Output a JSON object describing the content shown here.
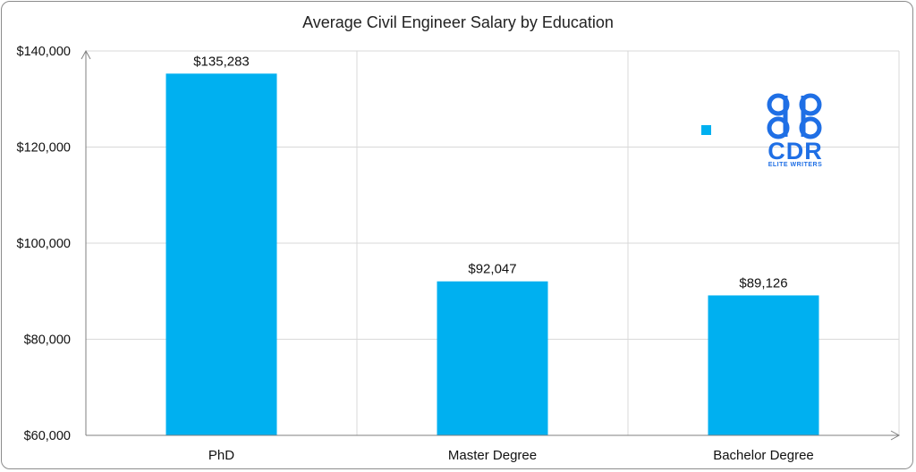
{
  "chart_data": {
    "type": "bar",
    "title": "Average Civil Engineer Salary by Education",
    "categories": [
      "PhD",
      "Master Degree",
      "Bachelor Degree"
    ],
    "values": [
      135283,
      92047,
      89126
    ],
    "value_labels": [
      "$135,283",
      "$92,047",
      "$89,126"
    ],
    "ylim": [
      60000,
      140000
    ],
    "yticks": [
      60000,
      80000,
      100000,
      120000,
      140000
    ],
    "ytick_labels": [
      "$60,000",
      "$80,000",
      "$100,000",
      "$120,000",
      "$140,000"
    ],
    "xlabel": "",
    "ylabel": "",
    "grid": true,
    "bar_color": "#00b0f0"
  },
  "logo": {
    "mark": "CDR",
    "tagline": "ELITE WRITERS",
    "color": "#1f6fe5"
  }
}
